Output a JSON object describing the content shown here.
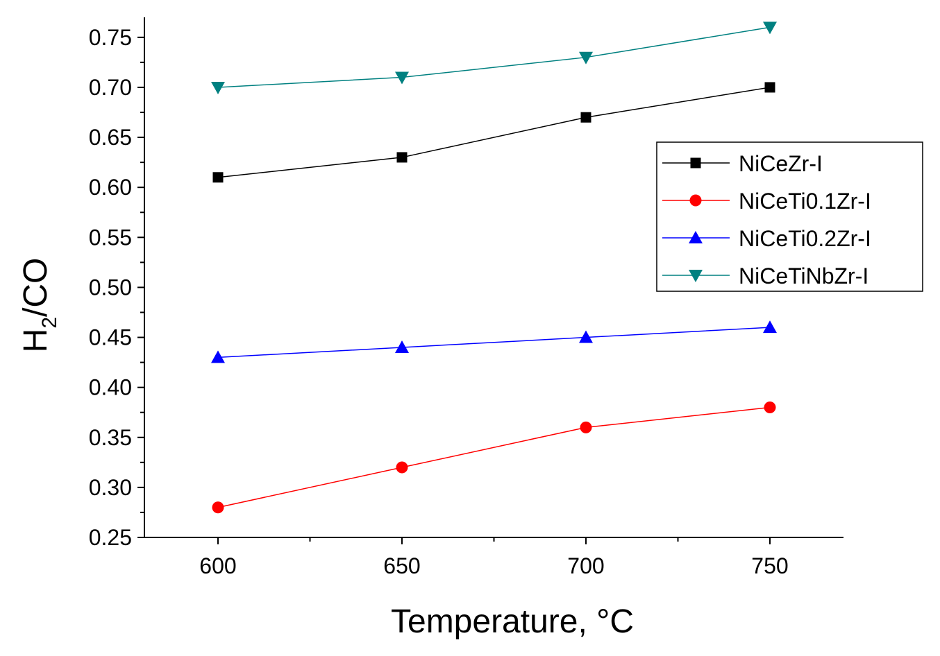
{
  "chart_data": {
    "type": "line",
    "title": "",
    "xlabel": "Temperature, °C",
    "ylabel_main": "H",
    "ylabel_sub": "2",
    "ylabel_rest": "/CO",
    "x": [
      600,
      650,
      700,
      750
    ],
    "xlim": [
      580,
      770
    ],
    "ylim": [
      0.25,
      0.77
    ],
    "xticks": [
      "600",
      "650",
      "700",
      "750"
    ],
    "xtick_values": [
      600,
      650,
      700,
      750
    ],
    "xminor": [
      625,
      675,
      725
    ],
    "yticks": [
      "0.25",
      "0.30",
      "0.35",
      "0.40",
      "0.45",
      "0.50",
      "0.55",
      "0.60",
      "0.65",
      "0.70",
      "0.75"
    ],
    "ytick_values": [
      0.25,
      0.3,
      0.35,
      0.4,
      0.45,
      0.5,
      0.55,
      0.6,
      0.65,
      0.7,
      0.75
    ],
    "legend_position": "right",
    "series": [
      {
        "name": "NiCeZr-I",
        "values": [
          0.61,
          0.63,
          0.67,
          0.7
        ],
        "color": "#000000",
        "marker": "square"
      },
      {
        "name": "NiCeTi0.1Zr-I",
        "values": [
          0.28,
          0.32,
          0.36,
          0.38
        ],
        "color": "#ff0000",
        "marker": "circle"
      },
      {
        "name": "NiCeTi0.2Zr-I",
        "values": [
          0.43,
          0.44,
          0.45,
          0.46
        ],
        "color": "#0000ff",
        "marker": "triangle-up"
      },
      {
        "name": "NiCeTiNbZr-I",
        "values": [
          0.7,
          0.71,
          0.73,
          0.76
        ],
        "color": "#008080",
        "marker": "triangle-down"
      }
    ]
  }
}
